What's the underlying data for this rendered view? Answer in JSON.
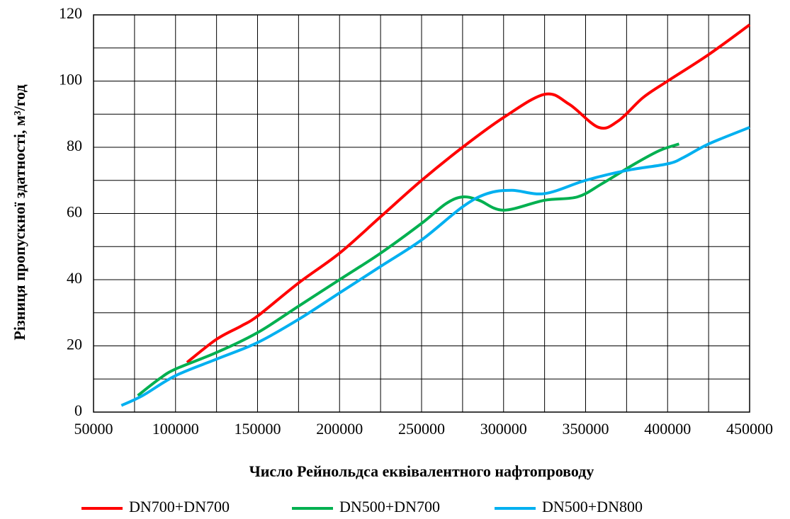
{
  "chart_data": {
    "type": "line",
    "x_label": "Число Рейнольдса еквівалентного нафтопроводу",
    "y_label": "Різниця пропускної здатності, м³/год",
    "xlim": [
      50000,
      450000
    ],
    "ylim": [
      0,
      120
    ],
    "xticks": [
      50000,
      100000,
      150000,
      200000,
      250000,
      300000,
      350000,
      400000,
      450000
    ],
    "yticks": [
      0,
      20,
      40,
      60,
      80,
      100,
      120
    ],
    "x_minor_ticks": [
      75000,
      125000,
      175000,
      225000,
      275000,
      325000,
      375000,
      425000
    ],
    "y_minor_ticks": [
      10,
      30,
      50,
      70,
      90,
      110
    ],
    "grid": true,
    "legend": "bottom",
    "smooth": true,
    "series": [
      {
        "name": "DN700+DN700",
        "color": "#ff0000",
        "x": [
          107000,
          125000,
          140000,
          150000,
          175000,
          200000,
          225000,
          250000,
          275000,
          300000,
          325000,
          340000,
          358000,
          370000,
          385000,
          400000,
          425000,
          450000
        ],
        "values": [
          15,
          22,
          26,
          29,
          39,
          48,
          59,
          70,
          80,
          89,
          96,
          93,
          86,
          88,
          95,
          100,
          108,
          117
        ]
      },
      {
        "name": "DN500+DN700",
        "color": "#00b050",
        "x": [
          77000,
          90000,
          100000,
          125000,
          150000,
          175000,
          200000,
          225000,
          250000,
          265000,
          275000,
          285000,
          300000,
          325000,
          345000,
          360000,
          380000,
          395000,
          407000
        ],
        "values": [
          5,
          10,
          13,
          18,
          24,
          32,
          40,
          48,
          57,
          63,
          65,
          64,
          61,
          64,
          65,
          69,
          75,
          79,
          81
        ]
      },
      {
        "name": "DN500+DN800",
        "color": "#00b0f0",
        "x": [
          67000,
          80000,
          100000,
          125000,
          150000,
          175000,
          200000,
          225000,
          250000,
          275000,
          290000,
          305000,
          325000,
          350000,
          375000,
          400000,
          410000,
          425000,
          450000
        ],
        "values": [
          2,
          5,
          11,
          16,
          21,
          28,
          36,
          44,
          52,
          62,
          66,
          67,
          66,
          70,
          73,
          75,
          77,
          81,
          86
        ]
      }
    ]
  }
}
